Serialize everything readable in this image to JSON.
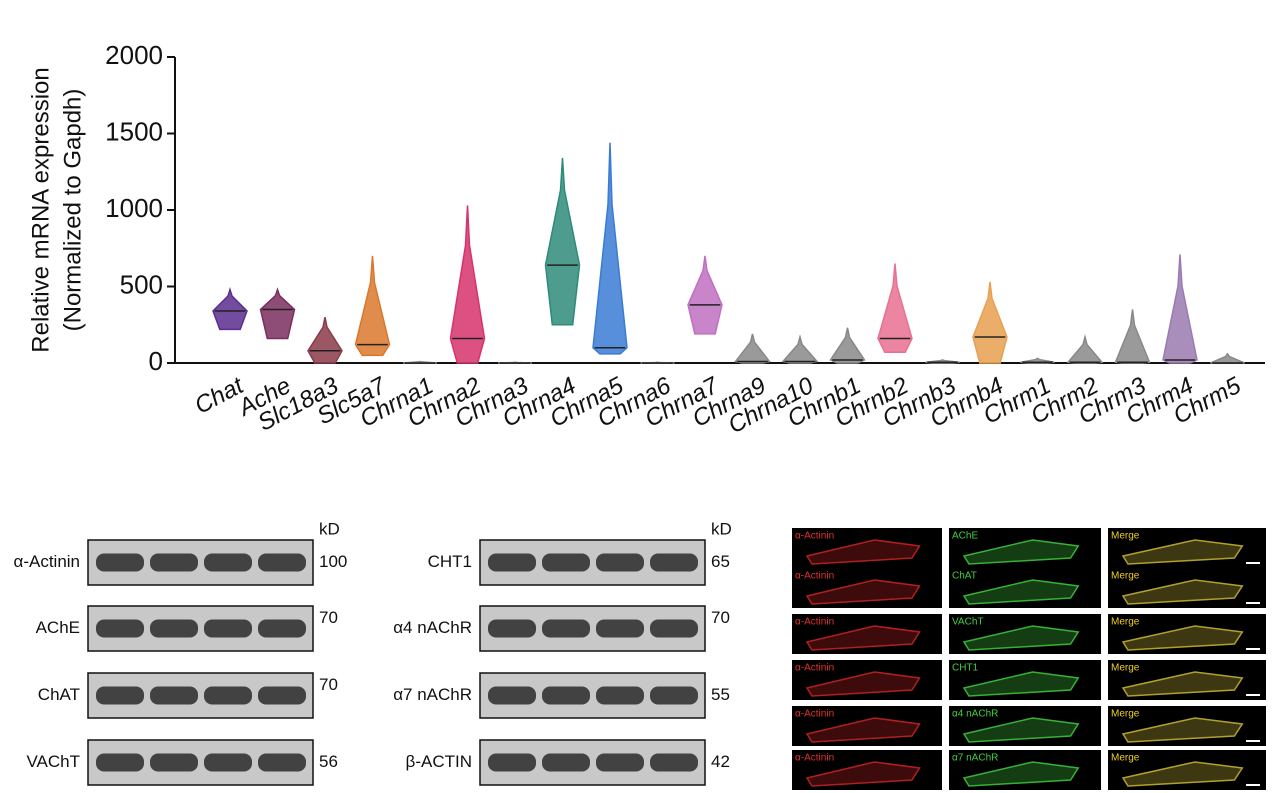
{
  "chart_data": {
    "type": "violin",
    "y_label": [
      "Relative mRNA expression",
      "(Normalized to Gapdh)"
    ],
    "categories": [
      "Chat",
      "Ache",
      "Slc18a3",
      "Slc5a7",
      "Chrna1",
      "Chrna2",
      "Chrna3",
      "Chrna4",
      "Chrna5",
      "Chrna6",
      "Chrna7",
      "Chrna9",
      "Chrna10",
      "Chrnb1",
      "Chrnb2",
      "Chrnb3",
      "Chrnb4",
      "Chrm1",
      "Chrm2",
      "Chrm3",
      "Chrm4",
      "Chrm5"
    ],
    "colors": [
      "#5b2d8e",
      "#7a2e5e",
      "#8b3a4a",
      "#d9782d",
      "#888888",
      "#d6336c",
      "#888888",
      "#2e8b7a",
      "#3a7bd5",
      "#888888",
      "#c070c0",
      "#888888",
      "#888888",
      "#888888",
      "#e87090",
      "#888888",
      "#e8a050",
      "#888888",
      "#888888",
      "#888888",
      "#9a7ab0",
      "#888888"
    ],
    "minima": [
      220,
      160,
      0,
      50,
      0,
      0,
      0,
      250,
      60,
      0,
      190,
      0,
      0,
      0,
      70,
      0,
      0,
      0,
      0,
      0,
      0,
      0
    ],
    "medians": [
      340,
      350,
      80,
      120,
      0,
      160,
      0,
      640,
      100,
      0,
      380,
      10,
      10,
      20,
      160,
      5,
      170,
      5,
      5,
      5,
      20,
      0
    ],
    "maxima": [
      480,
      480,
      300,
      700,
      10,
      1030,
      5,
      1340,
      1440,
      5,
      700,
      190,
      170,
      230,
      650,
      20,
      530,
      30,
      170,
      350,
      710,
      60
    ],
    "ylim": [
      0,
      2000
    ],
    "yticks": [
      0,
      500,
      1000,
      1500,
      2000
    ]
  },
  "blots": [
    {
      "unit": "kD",
      "rows": [
        {
          "label": "α-Actinin",
          "kd": 100
        },
        {
          "label": "AChE",
          "kd": 70
        },
        {
          "label": "ChAT",
          "kd": 70
        },
        {
          "label": "VAChT",
          "kd": 56
        }
      ]
    },
    {
      "unit": "kD",
      "rows": [
        {
          "label": "CHT1",
          "kd": 65
        },
        {
          "label": "α4 nAChR",
          "kd": 70
        },
        {
          "label": "α7 nAChR",
          "kd": 55
        },
        {
          "label": "β-ACTIN",
          "kd": 42
        }
      ]
    }
  ],
  "images": {
    "rows": [
      [
        "α-Actinin",
        "AChE",
        "Merge"
      ],
      [
        "α-Actinin",
        "ChAT",
        "Merge"
      ],
      [
        "α-Actinin",
        "VAChT",
        "Merge"
      ],
      [
        "α-Actinin",
        "CHT1",
        "Merge"
      ],
      [
        "α-Actinin",
        "α4 nAChR",
        "Merge"
      ],
      [
        "α-Actinin",
        "α7 nAChR",
        "Merge"
      ]
    ]
  }
}
